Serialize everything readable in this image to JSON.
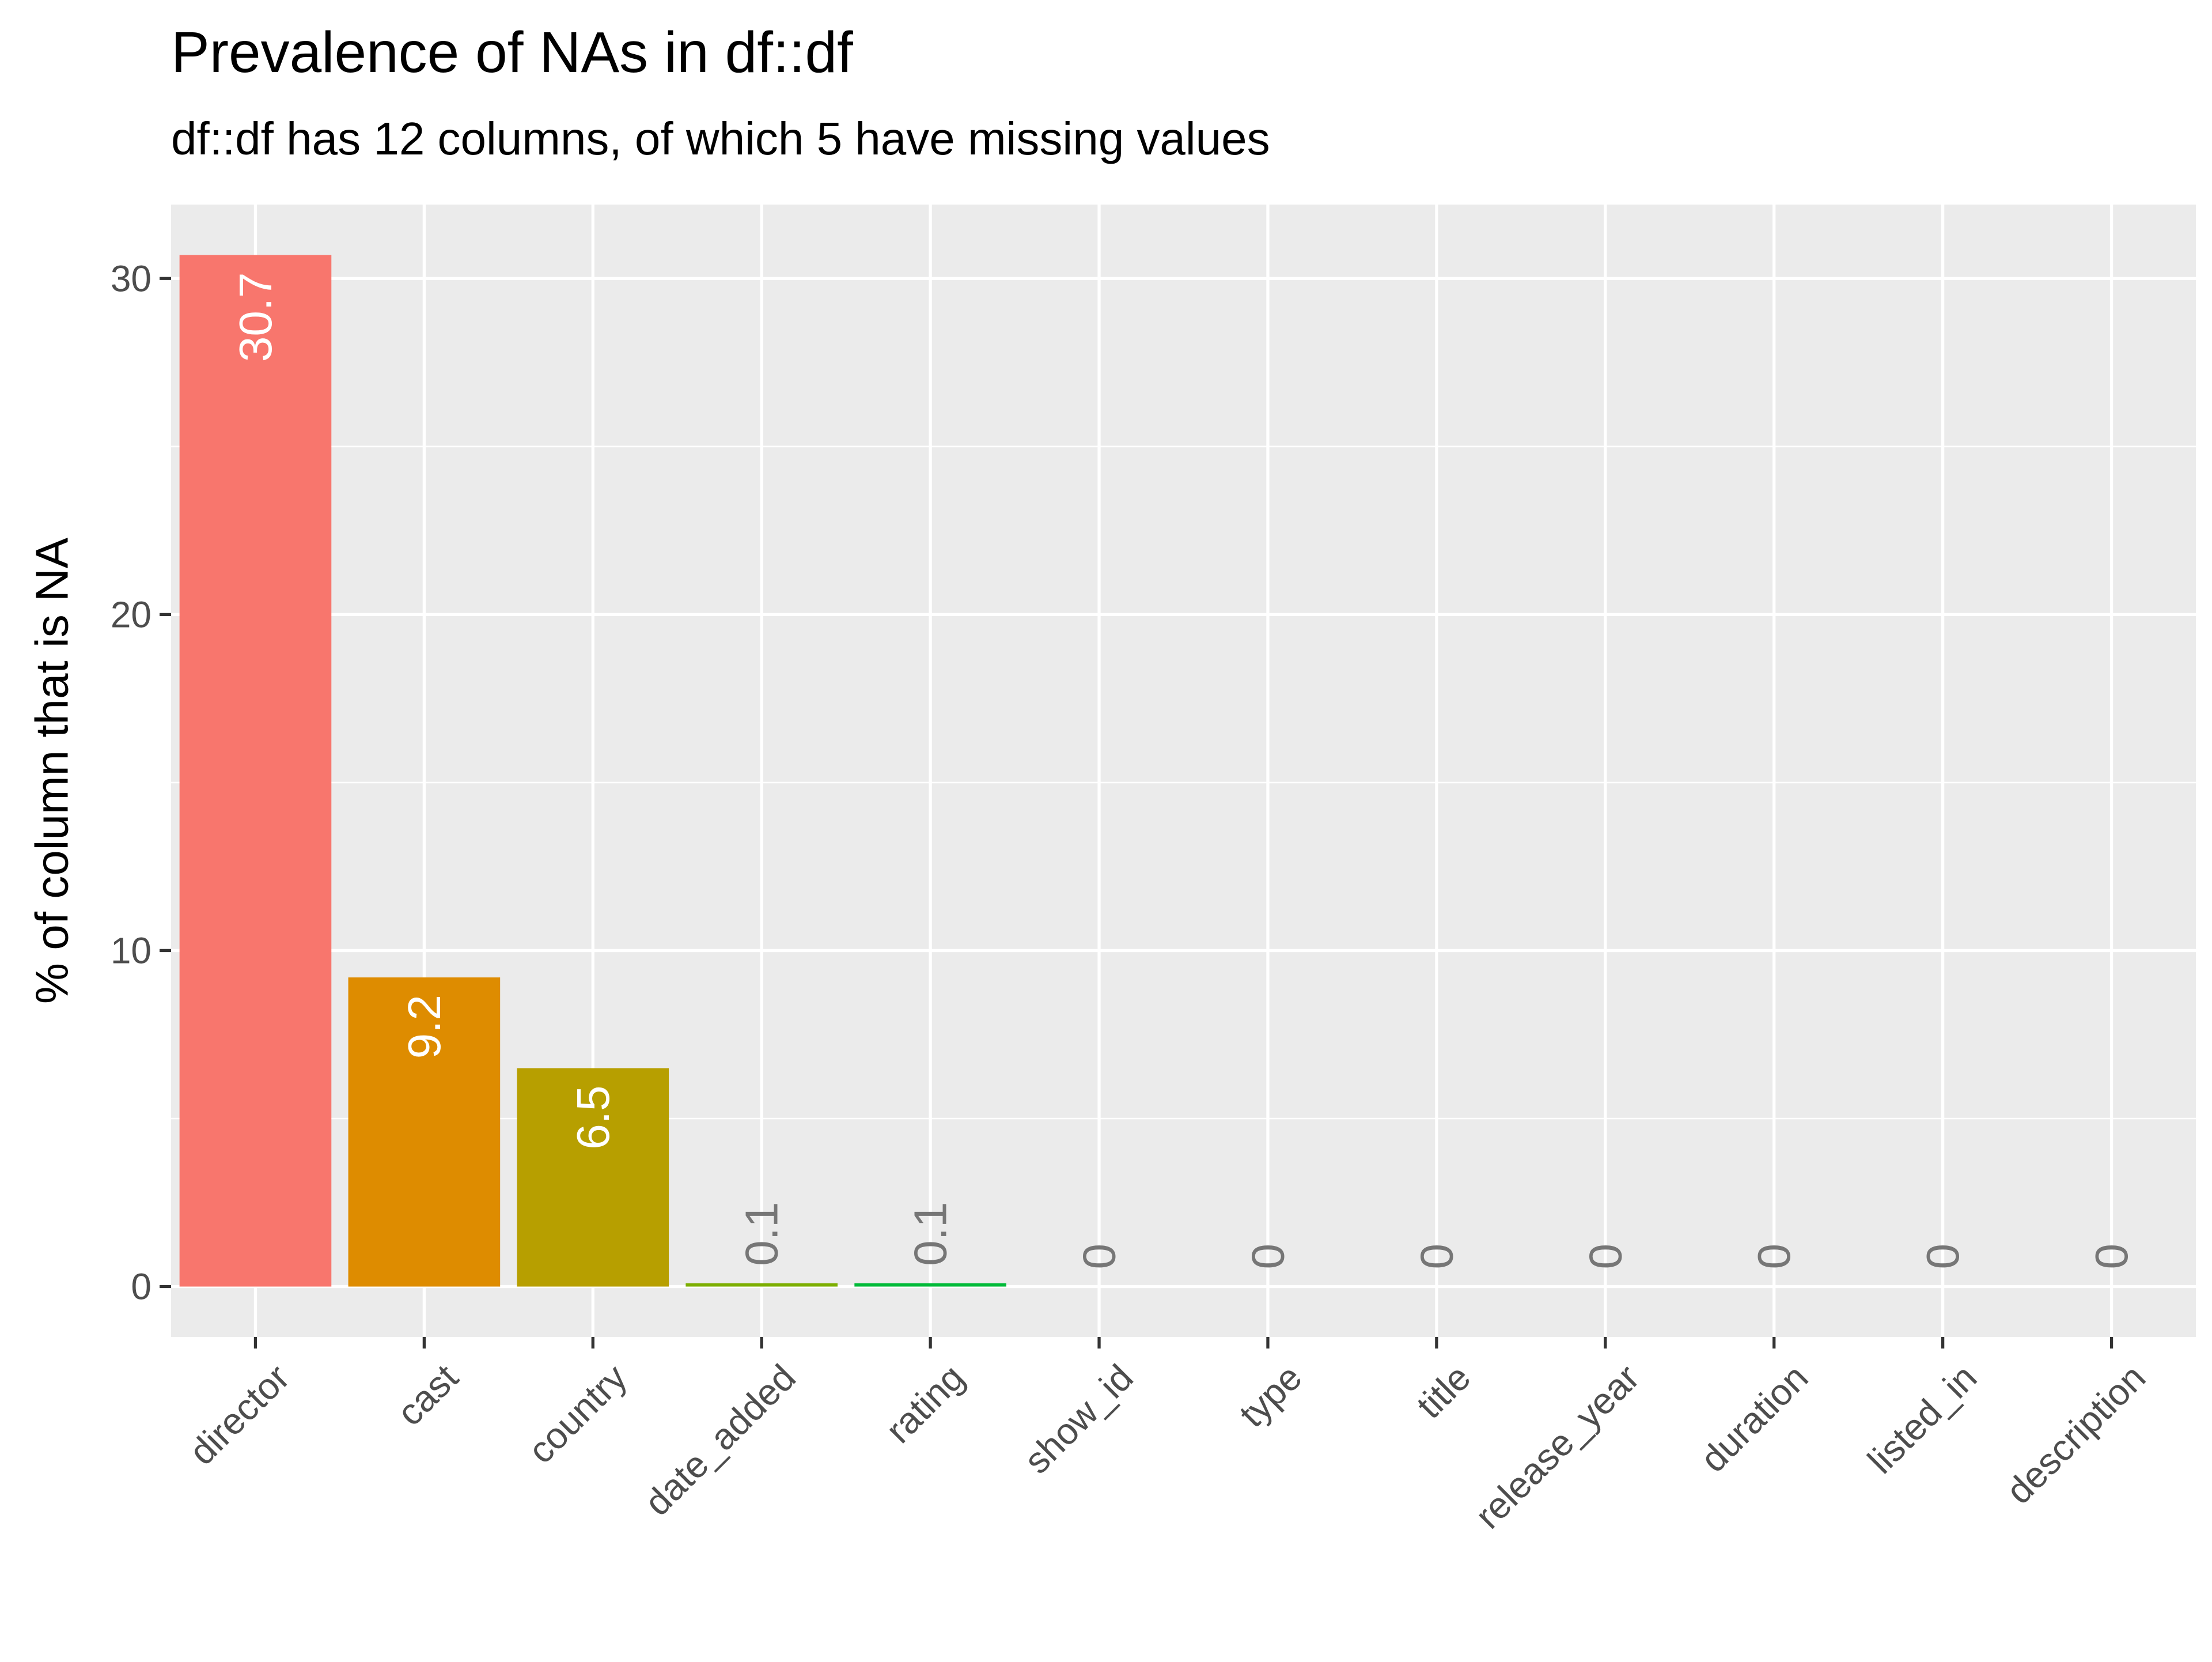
{
  "chart_data": {
    "type": "bar",
    "title": "Prevalence of NAs in df::df",
    "subtitle": "df::df has 12 columns, of which 5 have missing values",
    "xlabel": "",
    "ylabel": "% of column that is NA",
    "categories": [
      "director",
      "cast",
      "country",
      "date_added",
      "rating",
      "show_id",
      "type",
      "title",
      "release_year",
      "duration",
      "listed_in",
      "description"
    ],
    "values": [
      30.7,
      9.2,
      6.5,
      0.1,
      0.1,
      0,
      0,
      0,
      0,
      0,
      0,
      0
    ],
    "value_labels": [
      "30.7",
      "9.2",
      "6.5",
      "0.1",
      "0.1",
      "0",
      "0",
      "0",
      "0",
      "0",
      "0",
      "0"
    ],
    "colors": [
      "#F8766D",
      "#DE8C00",
      "#B79F00",
      "#7CAE00",
      "#00BA38",
      "#00C08B",
      "#00BFC4",
      "#00B4F0",
      "#619CFF",
      "#C77CFF",
      "#F564E3",
      "#FF64B0"
    ],
    "ylim": [
      -1.5,
      32.2
    ],
    "yticks": [
      0,
      10,
      20,
      30
    ],
    "ytick_labels": [
      "0",
      "10",
      "20",
      "30"
    ],
    "grid": true,
    "legend": "none",
    "panel_background": "#EBEBEB",
    "grid_color": "#FFFFFF"
  }
}
